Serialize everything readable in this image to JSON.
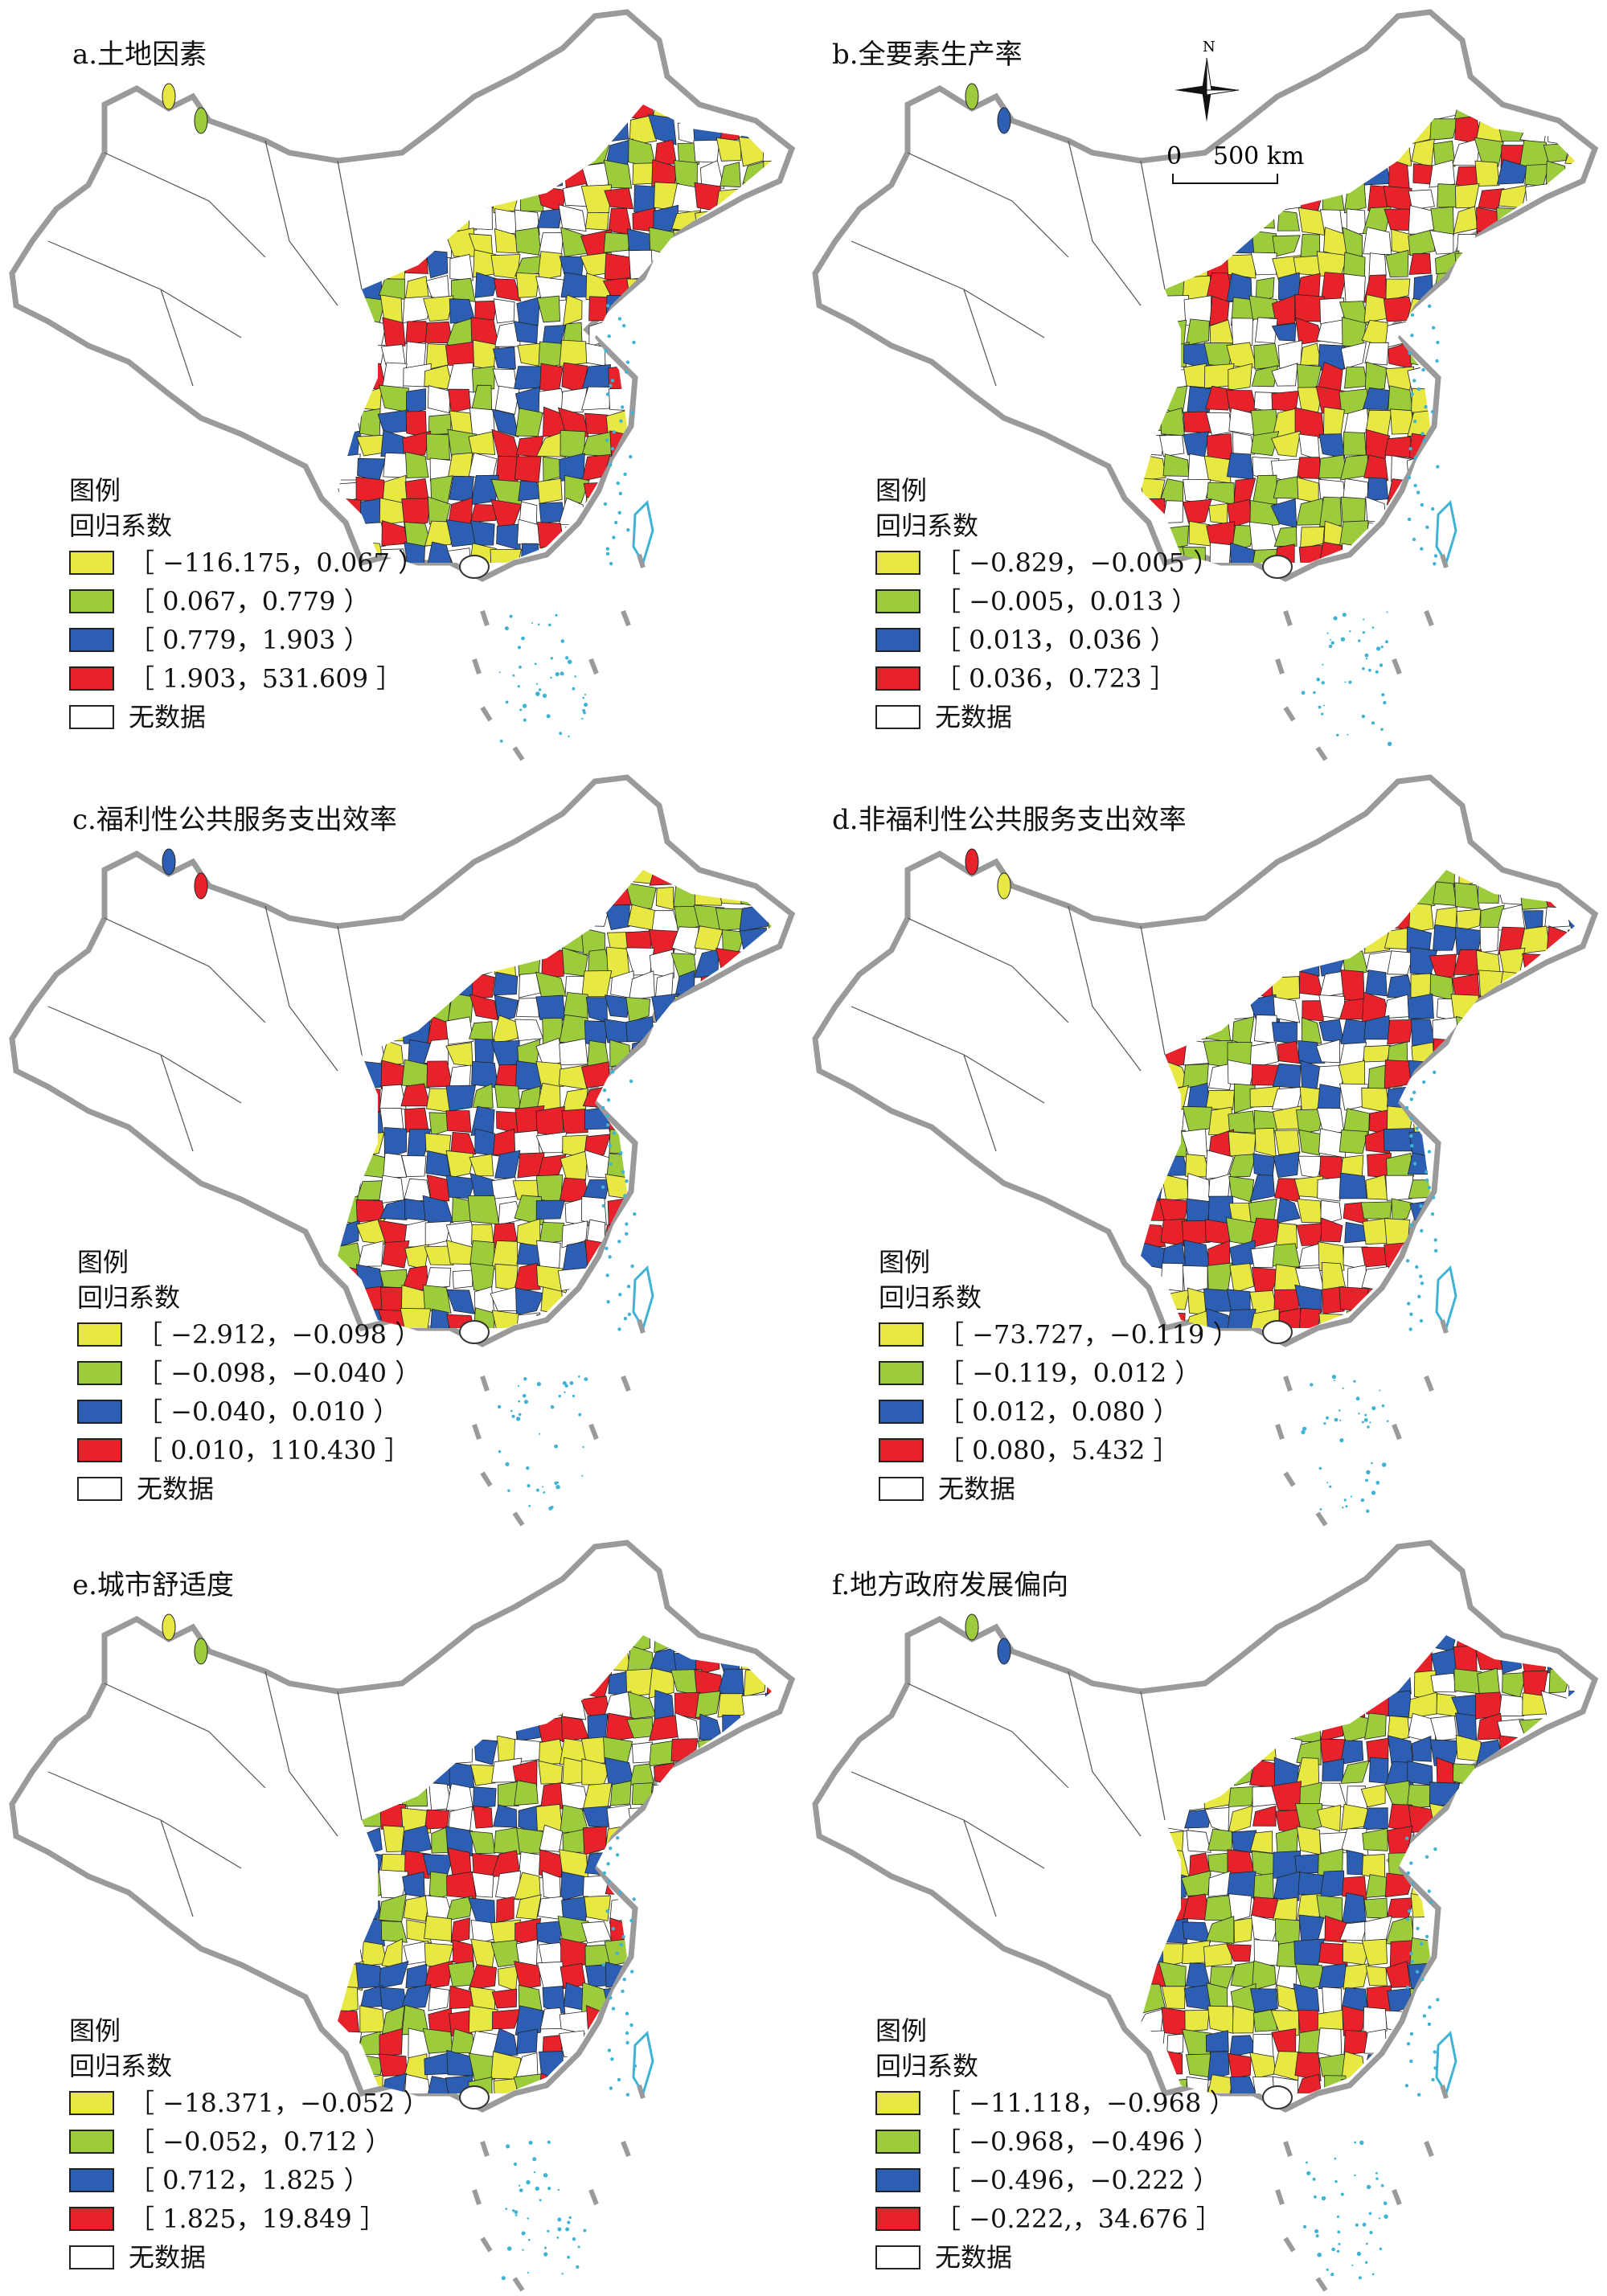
{
  "legend_heading": "图例",
  "legend_subheading": "回归系数",
  "no_data_label": "无数据",
  "colors": {
    "class1": "#e8e843",
    "class2": "#9ccc3c",
    "class3": "#2c5fb4",
    "class4": "#e8222a",
    "no_data": "#ffffff",
    "border": "#9a9a9a",
    "islands": "#3fb3d6"
  },
  "compass": {
    "north": "N",
    "scale_start": "0",
    "scale_label": "500 km"
  },
  "panels": [
    {
      "title": "a.土地因素",
      "classes": [
        "［ −116.175，0.067 ）",
        "［ 0.067，0.779 ）",
        "［ 0.779，1.903 ）",
        "［ 1.903，531.609 ］"
      ]
    },
    {
      "title": "b.全要素生产率",
      "classes": [
        "［ −0.829，−0.005 ）",
        "［ −0.005，0.013 ）",
        "［ 0.013，0.036 ）",
        "［ 0.036，0.723 ］"
      ]
    },
    {
      "title": "c.福利性公共服务支出效率",
      "classes": [
        "［ −2.912，−0.098 ）",
        "［ −0.098，−0.040 ）",
        "［ −0.040，0.010 ）",
        "［ 0.010，110.430 ］"
      ]
    },
    {
      "title": "d.非福利性公共服务支出效率",
      "classes": [
        "［ −73.727，−0.119 ）",
        "［ −0.119，0.012 ）",
        "［ 0.012，0.080 ）",
        "［ 0.080，5.432 ］"
      ]
    },
    {
      "title": "e.城市舒适度",
      "classes": [
        "［ −18.371，−0.052 ）",
        "［ −0.052，0.712 ）",
        "［ 0.712，1.825 ）",
        "［ 1.825，19.849 ］"
      ]
    },
    {
      "title": "f.地方政府发展偏向",
      "classes": [
        "［ −11.118，−0.968 ）",
        "［ −0.968，−0.496 ）",
        "［ −0.496，−0.222 ）",
        "［ −0.222,，34.676 ］"
      ]
    }
  ]
}
